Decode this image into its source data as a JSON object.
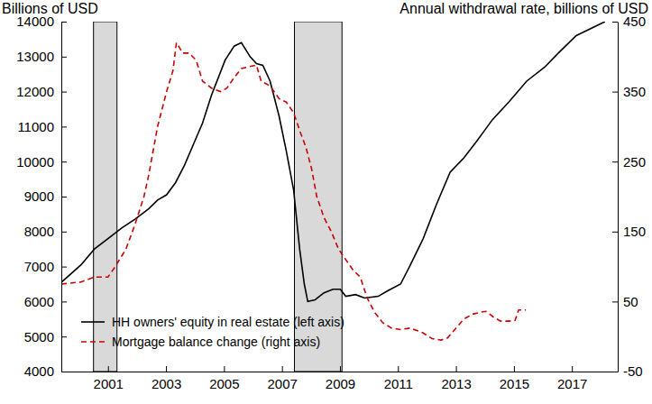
{
  "chart_data": {
    "type": "line",
    "ylabel": "Billions of USD",
    "y2label": "Annual withdrawal rate, billions of USD",
    "xlim": [
      1999.39,
      2018.58
    ],
    "xticks": [
      2001,
      2003,
      2005,
      2007,
      2009,
      2011,
      2013,
      2015,
      2017
    ],
    "ylim": [
      4000,
      14000
    ],
    "yticks": [
      4000,
      5000,
      6000,
      7000,
      8000,
      9000,
      10000,
      11000,
      12000,
      13000,
      14000
    ],
    "y2lim": [
      -50,
      450
    ],
    "y2ticks": [
      -50,
      50,
      150,
      250,
      350,
      450
    ],
    "grid": false,
    "legend": "lower left",
    "recessions": [
      {
        "start": 2000.5,
        "end": 2001.31
      },
      {
        "start": 2007.43,
        "end": 2009.07
      }
    ],
    "series": [
      {
        "name": "HH owners' equity in real estate (left axis)",
        "color": "#000000",
        "line_style": "solid",
        "axis": "y",
        "x": [
          1999.39,
          2000.07,
          2000.53,
          2001.0,
          2001.47,
          2001.93,
          2002.4,
          2002.71,
          2003.02,
          2003.33,
          2003.64,
          2003.95,
          2004.26,
          2004.57,
          2005.04,
          2005.35,
          2005.6,
          2005.9,
          2006.12,
          2006.34,
          2006.59,
          2006.9,
          2007.15,
          2007.4,
          2007.61,
          2007.77,
          2007.89,
          2008.14,
          2008.45,
          2008.76,
          2009.01,
          2009.2,
          2009.54,
          2009.85,
          2010.32,
          2010.63,
          2011.09,
          2011.4,
          2011.87,
          2012.34,
          2012.8,
          2013.27,
          2013.73,
          2014.26,
          2014.82,
          2015.44,
          2016.06,
          2016.53,
          2017.15,
          2018.14
        ],
        "values": [
          6550,
          7050,
          7500,
          7800,
          8100,
          8350,
          8650,
          8900,
          9050,
          9400,
          9900,
          10500,
          11100,
          11900,
          12900,
          13300,
          13400,
          13000,
          12800,
          12750,
          12300,
          11300,
          10300,
          9200,
          7500,
          6500,
          6000,
          6050,
          6250,
          6350,
          6350,
          6150,
          6200,
          6100,
          6150,
          6300,
          6500,
          7000,
          7800,
          8800,
          9700,
          10100,
          10600,
          11200,
          11700,
          12300,
          12700,
          13100,
          13600,
          14000
        ]
      },
      {
        "name": "Mortgage balance change (right axis)",
        "color": "#cc0000",
        "line_style": "dashed",
        "axis": "y2",
        "x": [
          1999.39,
          2000.07,
          2000.53,
          2001.0,
          2001.25,
          2001.62,
          2001.93,
          2002.24,
          2002.4,
          2002.71,
          2003.02,
          2003.24,
          2003.36,
          2003.58,
          2003.8,
          2004.04,
          2004.26,
          2004.57,
          2004.88,
          2005.1,
          2005.35,
          2005.6,
          2005.81,
          2006.12,
          2006.28,
          2006.59,
          2006.9,
          2007.15,
          2007.4,
          2007.65,
          2007.83,
          2008.02,
          2008.2,
          2008.45,
          2008.7,
          2008.95,
          2009.2,
          2009.45,
          2009.7,
          2009.94,
          2010.19,
          2010.47,
          2010.78,
          2011.09,
          2011.4,
          2011.71,
          2011.87,
          2012.18,
          2012.49,
          2012.71,
          2012.96,
          2013.27,
          2013.58,
          2013.89,
          2014.04,
          2014.29,
          2014.54,
          2014.82,
          2015.04,
          2015.16,
          2015.41
        ],
        "values": [
          75,
          78,
          85,
          85,
          100,
          125,
          160,
          200,
          230,
          300,
          350,
          380,
          420,
          405,
          405,
          395,
          365,
          355,
          350,
          355,
          370,
          383,
          385,
          388,
          365,
          358,
          340,
          335,
          320,
          290,
          270,
          240,
          200,
          170,
          150,
          125,
          110,
          95,
          85,
          55,
          35,
          20,
          12,
          10,
          12,
          8,
          5,
          -3,
          -5,
          -2,
          10,
          25,
          32,
          35,
          36,
          28,
          22,
          22,
          23,
          38,
          38
        ]
      }
    ]
  }
}
